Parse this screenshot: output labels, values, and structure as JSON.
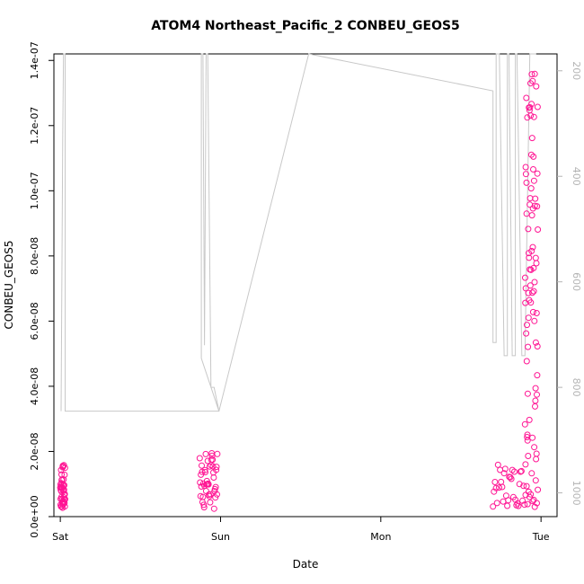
{
  "chart_data": {
    "type": "scatter",
    "title": "ATOM4 Northeast_Pacific_2 CONBEU_GEOS5",
    "xlabel": "Date",
    "ylabel": "CONBEU_GEOS5",
    "x_ticks": [
      "Sat",
      "Sun",
      "Mon",
      "Tue"
    ],
    "x_unit": "days since Sat 00:00",
    "xlim": [
      -0.04,
      3.1
    ],
    "ylim": [
      0,
      1.42e-07
    ],
    "y_ticks": [
      0,
      2e-08,
      4e-08,
      6e-08,
      8e-08,
      1e-07,
      1.2e-07,
      1.4e-07
    ],
    "y_tick_labels": [
      "0.0e+00",
      "2.0e-08",
      "4.0e-08",
      "6.0e-08",
      "8.0e-08",
      "1.0e-07",
      "1.2e-07",
      "1.4e-07"
    ],
    "y2_ticks": [
      200,
      400,
      600,
      800,
      1000
    ],
    "y2lim_pressure": [
      1045,
      168
    ],
    "y2_color": "#b4b4b4",
    "grid": false,
    "series": [
      {
        "kind": "line",
        "color": "#c8c8c8",
        "points": [
          [
            0.005,
            845
          ],
          [
            0.015,
            330
          ],
          [
            0.02,
            168
          ],
          [
            0.03,
            168
          ],
          [
            0.03,
            845
          ],
          [
            0.99,
            845
          ],
          [
            0.88,
            745
          ],
          [
            0.88,
            168
          ],
          [
            0.89,
            168
          ],
          [
            0.9,
            720
          ],
          [
            0.91,
            168
          ],
          [
            0.92,
            168
          ],
          [
            0.94,
            800
          ],
          [
            0.96,
            800
          ],
          [
            0.99,
            845
          ],
          [
            1.55,
            168
          ],
          [
            2.7,
            238
          ],
          [
            2.7,
            715
          ],
          [
            2.72,
            715
          ],
          [
            2.72,
            168
          ],
          [
            2.74,
            168
          ],
          [
            2.77,
            740
          ],
          [
            2.79,
            740
          ],
          [
            2.79,
            168
          ],
          [
            2.8,
            168
          ],
          [
            2.82,
            740
          ],
          [
            2.84,
            740
          ],
          [
            2.84,
            168
          ],
          [
            2.85,
            168
          ],
          [
            2.88,
            740
          ],
          [
            2.9,
            740
          ],
          [
            2.93,
            168
          ],
          [
            2.95,
            168
          ],
          [
            2.97,
            168
          ]
        ]
      },
      {
        "kind": "points",
        "color": "#ff1493",
        "segments": [
          {
            "x_range": [
              0.0,
              0.03
            ],
            "y_range": [
              2e-09,
              1.6e-08
            ]
          },
          {
            "x_range": [
              0.87,
              0.98
            ],
            "y_range": [
              2e-09,
              2e-08
            ]
          },
          {
            "x_range": [
              2.7,
              2.98
            ],
            "y_range": [
              3e-09,
              1.6e-08
            ]
          },
          {
            "x_range": [
              2.9,
              2.98
            ],
            "y_range": [
              1.5e-08,
              1.37e-07
            ]
          }
        ]
      }
    ]
  }
}
